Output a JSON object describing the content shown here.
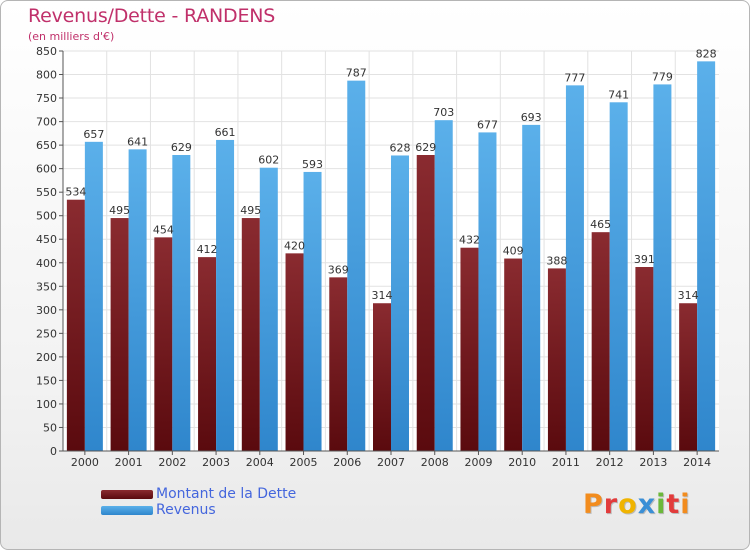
{
  "title": "Revenus/Dette - RANDENS",
  "subtitle": "(en milliers d'€)",
  "logo_text": "Proxiti",
  "colors": {
    "title": "#c0306a",
    "dette": "#7a1f24",
    "revenus": "#4fa6e3",
    "legend_text": "#4466dd",
    "grid": "#e2e2e2",
    "plot_bg": "#ffffff"
  },
  "chart_data": {
    "type": "bar",
    "categories": [
      "2000",
      "2001",
      "2002",
      "2003",
      "2004",
      "2005",
      "2006",
      "2007",
      "2008",
      "2009",
      "2010",
      "2011",
      "2012",
      "2013",
      "2014"
    ],
    "series": [
      {
        "name": "Montant de la Dette",
        "values": [
          534,
          495,
          454,
          412,
          495,
          420,
          369,
          314,
          629,
          432,
          409,
          388,
          465,
          391,
          314
        ]
      },
      {
        "name": "Revenus",
        "values": [
          657,
          641,
          629,
          661,
          602,
          593,
          787,
          628,
          703,
          677,
          693,
          777,
          741,
          779,
          828
        ]
      }
    ],
    "ylim": [
      0,
      850
    ],
    "ytick_step": 50,
    "grid": true,
    "legend_position": "bottom-left"
  }
}
